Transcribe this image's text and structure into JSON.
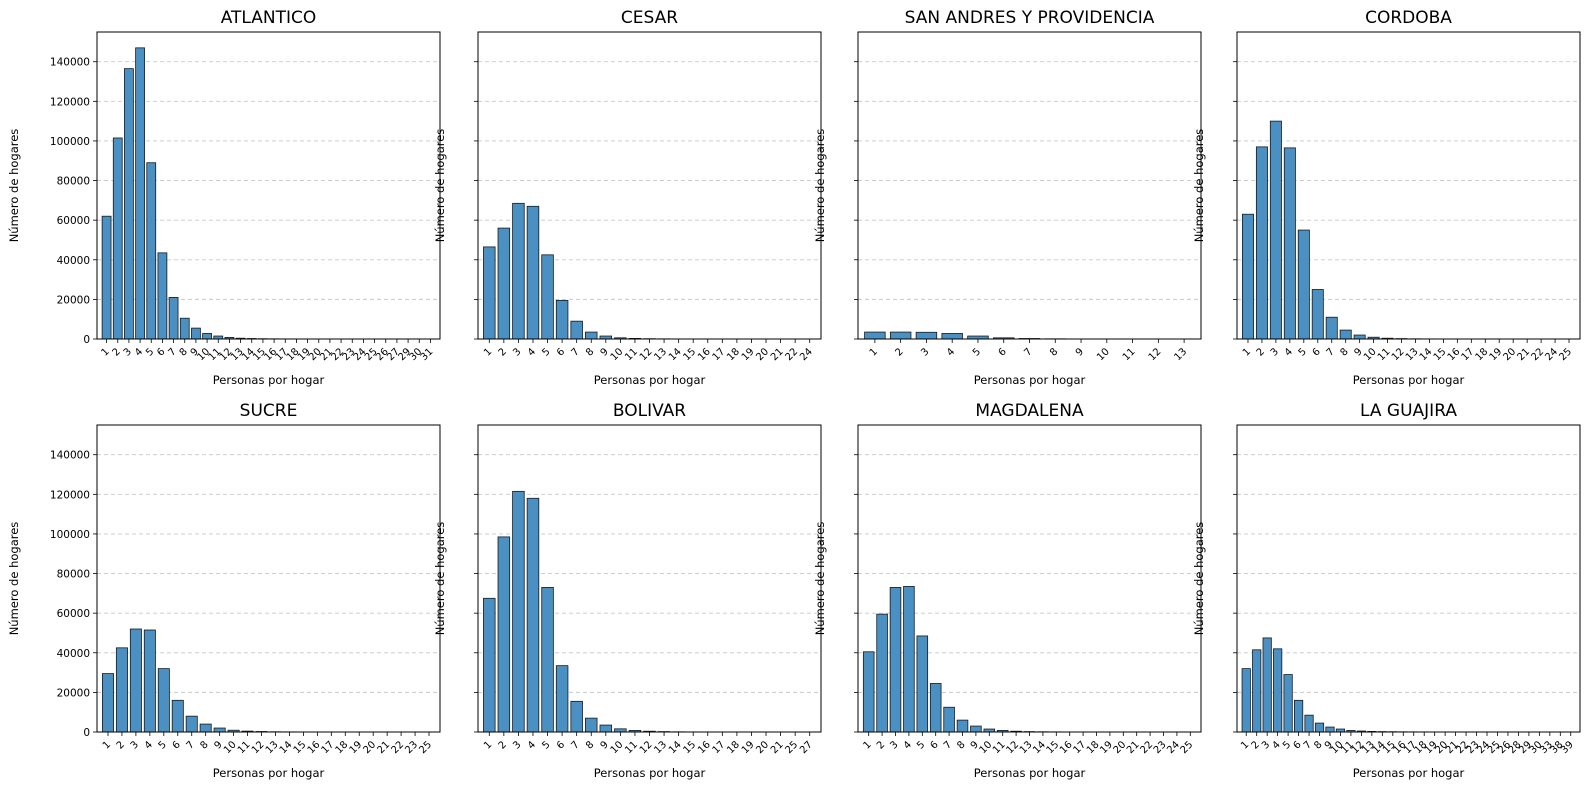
{
  "chart_data": [
    {
      "type": "bar",
      "title": "ATLANTICO",
      "xlabel": "Personas por hogar",
      "ylabel": "Número de hogares",
      "ylim": [
        0,
        155000
      ],
      "yticks": [
        "0",
        "20000",
        "40000",
        "60000",
        "80000",
        "100000",
        "120000",
        "140000"
      ],
      "grid": "y",
      "categories": [
        "1",
        "2",
        "3",
        "4",
        "5",
        "6",
        "7",
        "8",
        "9",
        "10",
        "11",
        "12",
        "13",
        "14",
        "15",
        "16",
        "17",
        "18",
        "19",
        "20",
        "21",
        "22",
        "23",
        "24",
        "25",
        "26",
        "27",
        "29",
        "30",
        "31"
      ],
      "values": [
        62000,
        101500,
        136500,
        147000,
        89000,
        43500,
        21000,
        10500,
        5500,
        2800,
        1500,
        800,
        400,
        250,
        150,
        100,
        60,
        40,
        30,
        20,
        15,
        10,
        8,
        6,
        5,
        4,
        3,
        2,
        2,
        2
      ]
    },
    {
      "type": "bar",
      "title": "CESAR",
      "xlabel": "Personas por hogar",
      "ylabel": "Número de hogares",
      "ylim": [
        0,
        155000
      ],
      "grid": "y",
      "categories": [
        "1",
        "2",
        "3",
        "4",
        "5",
        "6",
        "7",
        "8",
        "9",
        "10",
        "11",
        "12",
        "13",
        "14",
        "15",
        "16",
        "17",
        "18",
        "19",
        "20",
        "21",
        "22",
        "24"
      ],
      "values": [
        46500,
        56000,
        68500,
        67000,
        42500,
        19500,
        9000,
        3500,
        1500,
        600,
        300,
        150,
        80,
        50,
        30,
        20,
        15,
        10,
        8,
        5,
        4,
        3,
        2
      ]
    },
    {
      "type": "bar",
      "title": "SAN ANDRES Y PROVIDENCIA",
      "xlabel": "Personas por hogar",
      "ylabel": "Número de hogares",
      "ylim": [
        0,
        155000
      ],
      "grid": "y",
      "categories": [
        "1",
        "2",
        "3",
        "4",
        "5",
        "6",
        "7",
        "8",
        "9",
        "10",
        "11",
        "12",
        "13"
      ],
      "values": [
        3500,
        3500,
        3400,
        2800,
        1500,
        600,
        250,
        100,
        50,
        20,
        10,
        5,
        3
      ]
    },
    {
      "type": "bar",
      "title": "CORDOBA",
      "xlabel": "Personas por hogar",
      "ylabel": "Número de hogares",
      "ylim": [
        0,
        155000
      ],
      "grid": "y",
      "categories": [
        "1",
        "2",
        "3",
        "4",
        "5",
        "6",
        "7",
        "8",
        "9",
        "10",
        "11",
        "12",
        "13",
        "14",
        "15",
        "16",
        "17",
        "18",
        "19",
        "20",
        "21",
        "22",
        "24",
        "25"
      ],
      "values": [
        63000,
        97000,
        110000,
        96500,
        55000,
        25000,
        11000,
        4500,
        2000,
        900,
        400,
        200,
        100,
        60,
        40,
        25,
        15,
        10,
        8,
        5,
        4,
        3,
        2,
        2
      ]
    },
    {
      "type": "bar",
      "title": "SUCRE",
      "xlabel": "Personas por hogar",
      "ylabel": "Número de hogares",
      "ylim": [
        0,
        155000
      ],
      "yticks": [
        "0",
        "20000",
        "40000",
        "60000",
        "80000",
        "100000",
        "120000",
        "140000"
      ],
      "grid": "y",
      "categories": [
        "1",
        "2",
        "3",
        "4",
        "5",
        "6",
        "7",
        "8",
        "9",
        "10",
        "11",
        "12",
        "13",
        "14",
        "15",
        "16",
        "17",
        "18",
        "19",
        "20",
        "21",
        "22",
        "23",
        "25"
      ],
      "values": [
        29500,
        42500,
        52000,
        51500,
        32000,
        16000,
        8000,
        4000,
        2000,
        900,
        450,
        250,
        120,
        70,
        40,
        25,
        15,
        10,
        8,
        5,
        4,
        3,
        2,
        2
      ]
    },
    {
      "type": "bar",
      "title": "BOLIVAR",
      "xlabel": "Personas por hogar",
      "ylabel": "Número de hogares",
      "ylim": [
        0,
        155000
      ],
      "grid": "y",
      "categories": [
        "1",
        "2",
        "3",
        "4",
        "5",
        "6",
        "7",
        "8",
        "9",
        "10",
        "11",
        "12",
        "13",
        "14",
        "15",
        "16",
        "17",
        "18",
        "19",
        "20",
        "21",
        "25",
        "27"
      ],
      "values": [
        67500,
        98500,
        121500,
        118000,
        73000,
        33500,
        15500,
        7000,
        3500,
        1600,
        800,
        400,
        200,
        100,
        60,
        40,
        25,
        15,
        10,
        8,
        5,
        3,
        2
      ]
    },
    {
      "type": "bar",
      "title": "MAGDALENA",
      "xlabel": "Personas por hogar",
      "ylabel": "Número de hogares",
      "ylim": [
        0,
        155000
      ],
      "grid": "y",
      "categories": [
        "1",
        "2",
        "3",
        "4",
        "5",
        "6",
        "7",
        "8",
        "9",
        "10",
        "11",
        "12",
        "13",
        "14",
        "15",
        "16",
        "17",
        "18",
        "19",
        "20",
        "21",
        "22",
        "23",
        "24",
        "25"
      ],
      "values": [
        40500,
        59500,
        73000,
        73500,
        48500,
        24500,
        12500,
        6000,
        3000,
        1500,
        800,
        400,
        200,
        120,
        70,
        40,
        25,
        15,
        10,
        8,
        5,
        4,
        3,
        2,
        2
      ]
    },
    {
      "type": "bar",
      "title": "LA GUAJIRA",
      "xlabel": "Personas por hogar",
      "ylabel": "Número de hogares",
      "ylim": [
        0,
        155000
      ],
      "grid": "y",
      "categories": [
        "1",
        "2",
        "3",
        "4",
        "5",
        "6",
        "7",
        "8",
        "9",
        "10",
        "11",
        "12",
        "13",
        "14",
        "15",
        "16",
        "17",
        "18",
        "19",
        "20",
        "21",
        "22",
        "23",
        "24",
        "25",
        "26",
        "28",
        "29",
        "30",
        "33",
        "38",
        "39"
      ],
      "values": [
        32000,
        41500,
        47500,
        42000,
        29000,
        16000,
        8500,
        4500,
        2500,
        1500,
        800,
        500,
        300,
        200,
        150,
        100,
        80,
        60,
        50,
        40,
        30,
        25,
        20,
        15,
        12,
        10,
        8,
        6,
        5,
        4,
        3,
        2
      ]
    }
  ]
}
